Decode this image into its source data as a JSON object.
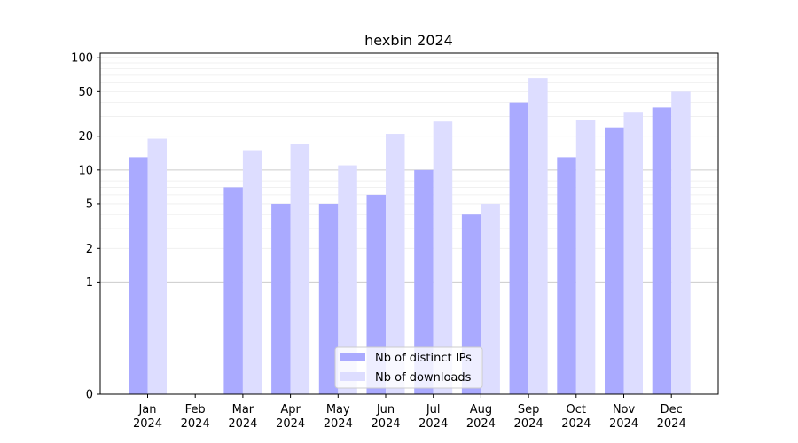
{
  "chart_data": {
    "type": "bar",
    "title": "hexbin 2024",
    "xlabel": "",
    "ylabel": "",
    "y_scale": "symlog",
    "ylim": [
      0,
      100
    ],
    "y_ticks": [
      0,
      1,
      2,
      5,
      10,
      20,
      50,
      100
    ],
    "categories": [
      [
        "Jan",
        "2024"
      ],
      [
        "Feb",
        "2024"
      ],
      [
        "Mar",
        "2024"
      ],
      [
        "Apr",
        "2024"
      ],
      [
        "May",
        "2024"
      ],
      [
        "Jun",
        "2024"
      ],
      [
        "Jul",
        "2024"
      ],
      [
        "Aug",
        "2024"
      ],
      [
        "Sep",
        "2024"
      ],
      [
        "Oct",
        "2024"
      ],
      [
        "Nov",
        "2024"
      ],
      [
        "Dec",
        "2024"
      ]
    ],
    "series": [
      {
        "name": "Nb of distinct IPs",
        "color": "#aaaaff",
        "values": [
          13,
          0,
          7,
          5,
          5,
          6,
          10,
          4,
          40,
          13,
          24,
          36
        ]
      },
      {
        "name": "Nb of downloads",
        "color": "#ddddff",
        "values": [
          19,
          0,
          15,
          17,
          11,
          21,
          27,
          5,
          66,
          28,
          33,
          50
        ]
      }
    ],
    "grid": true,
    "legend_position": "bottom-center"
  }
}
